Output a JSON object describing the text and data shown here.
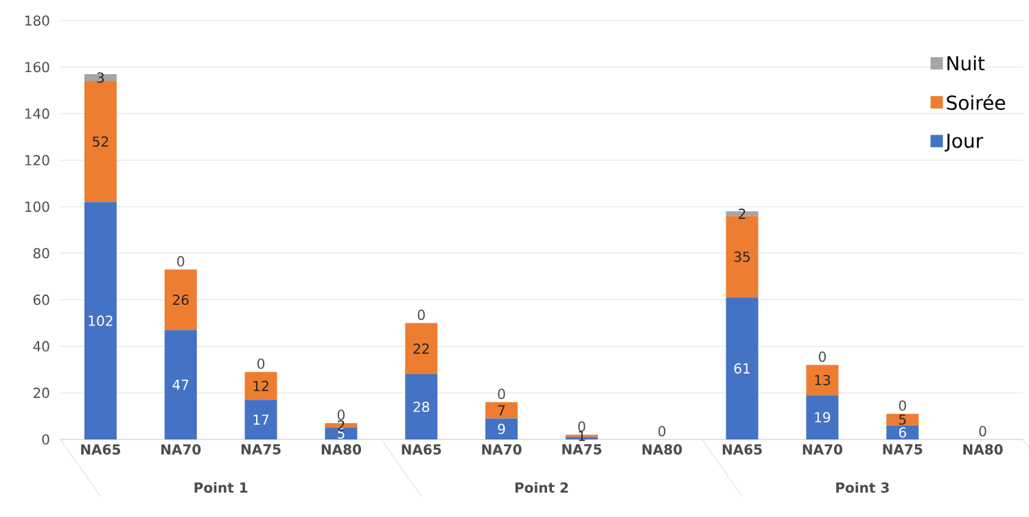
{
  "chart_data": {
    "type": "bar",
    "stacked": true,
    "categories": [
      "NA65",
      "NA70",
      "NA75",
      "NA80",
      "NA65",
      "NA70",
      "NA75",
      "NA80",
      "NA65",
      "NA70",
      "NA75",
      "NA80"
    ],
    "annotations": [
      "Point 1",
      "Point 2",
      "Point 3"
    ],
    "series": [
      {
        "name": "Jour",
        "color": "#4472c4",
        "values": [
          102,
          47,
          17,
          5,
          28,
          9,
          1,
          0,
          61,
          19,
          6,
          0
        ],
        "value_labels": [
          "102",
          "47",
          "17",
          "5",
          "28",
          "9",
          null,
          null,
          "61",
          "19",
          "6",
          null
        ]
      },
      {
        "name": "Soirée",
        "color": "#ed7d31",
        "values": [
          52,
          26,
          12,
          2,
          22,
          7,
          1,
          0,
          35,
          13,
          5,
          0
        ],
        "value_labels": [
          "52",
          "26",
          "12",
          "2",
          "22",
          "7",
          "1",
          null,
          "35",
          "13",
          "5",
          null
        ]
      },
      {
        "name": "Nuit",
        "color": "#a5a5a5",
        "values": [
          3,
          0,
          0,
          0,
          0,
          0,
          0,
          0,
          2,
          0,
          0,
          0
        ],
        "value_labels": [
          "3",
          "0",
          "0",
          "0",
          "0",
          "0",
          "0",
          "0",
          "2",
          "0",
          "0",
          "0"
        ]
      }
    ],
    "ylim": [
      0,
      180
    ],
    "yticks": [
      0,
      20,
      40,
      60,
      80,
      100,
      120,
      140,
      160,
      180
    ],
    "grid": "y",
    "legend": "top right"
  }
}
